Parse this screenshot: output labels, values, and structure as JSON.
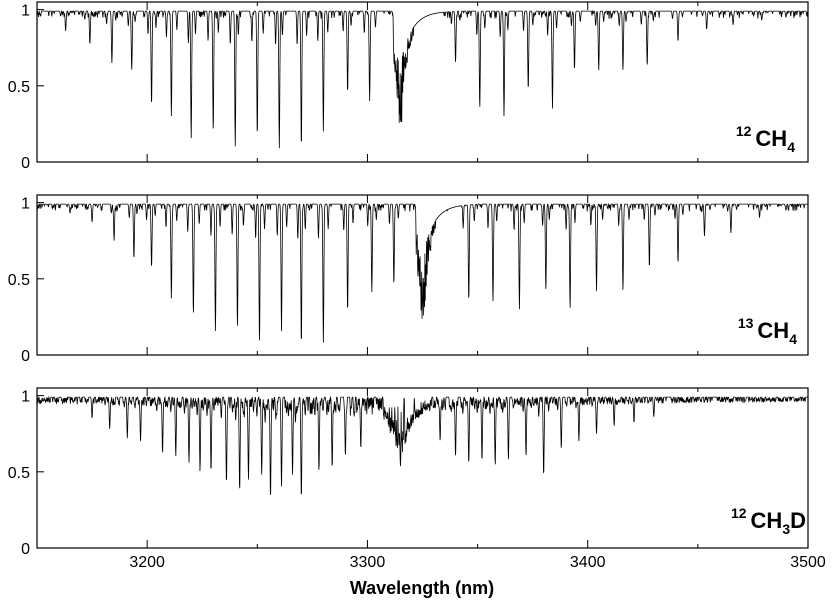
{
  "chart_data": [
    {
      "type": "line",
      "species": {
        "sup": "12",
        "main": "CH",
        "sub": "4",
        "tail": ""
      },
      "xlim": [
        3150,
        3500
      ],
      "ylim": [
        0,
        1.05
      ],
      "yticks": [
        "0",
        "0.5",
        "1"
      ],
      "xticks": [],
      "continuum": 0.99,
      "band_center": 3315,
      "band_depth_min": 0.1,
      "lines_x": [
        3163,
        3174,
        3184,
        3193,
        3202,
        3211,
        3220,
        3230,
        3240,
        3250,
        3260,
        3270,
        3280,
        3291,
        3301,
        3340,
        3351,
        3362,
        3373,
        3384,
        3394,
        3405,
        3416,
        3427,
        3441,
        3454,
        3466,
        3479,
        3490
      ],
      "lines_y": [
        0.86,
        0.77,
        0.65,
        0.6,
        0.37,
        0.3,
        0.15,
        0.2,
        0.1,
        0.17,
        0.09,
        0.09,
        0.2,
        0.45,
        0.4,
        0.65,
        0.35,
        0.3,
        0.47,
        0.35,
        0.6,
        0.6,
        0.6,
        0.63,
        0.79,
        0.87,
        0.9,
        0.93,
        0.95
      ]
    },
    {
      "type": "line",
      "species": {
        "sup": "13",
        "main": "CH",
        "sub": "4",
        "tail": ""
      },
      "xlim": [
        3150,
        3500
      ],
      "ylim": [
        0,
        1.05
      ],
      "yticks": [
        "0",
        "0.5",
        "1"
      ],
      "xticks": [],
      "continuum": 0.99,
      "band_center": 3325,
      "band_depth_min": 0.07,
      "lines_x": [
        3157,
        3165,
        3175,
        3185,
        3194,
        3202,
        3211,
        3221,
        3231,
        3241,
        3251,
        3261,
        3270,
        3280,
        3291,
        3302,
        3312,
        3346,
        3357,
        3369,
        3381,
        3392,
        3404,
        3416,
        3428,
        3441,
        3453,
        3465,
        3478,
        3490
      ],
      "lines_y": [
        0.97,
        0.93,
        0.87,
        0.75,
        0.63,
        0.57,
        0.37,
        0.26,
        0.15,
        0.18,
        0.08,
        0.15,
        0.06,
        0.08,
        0.28,
        0.41,
        0.46,
        0.35,
        0.35,
        0.3,
        0.42,
        0.3,
        0.42,
        0.42,
        0.57,
        0.6,
        0.78,
        0.8,
        0.9,
        0.95
      ]
    },
    {
      "type": "line",
      "species": {
        "sup": "12",
        "main": "CH",
        "sub": "3",
        "tail": "D"
      },
      "xlim": [
        3150,
        3500
      ],
      "ylim": [
        0,
        1.05
      ],
      "yticks": [
        "0",
        "0.5",
        "1"
      ],
      "xticks": [
        "3200",
        "3300",
        "3400",
        "3500"
      ],
      "xlabel": "Wavelength (nm)",
      "continuum": 0.99,
      "band_center": 3315,
      "band_depth_min": 0.52,
      "lines_x": [
        3175,
        3183,
        3191,
        3197,
        3207,
        3213,
        3219,
        3224,
        3229,
        3236,
        3242,
        3246,
        3252,
        3256,
        3261,
        3266,
        3270,
        3278,
        3284,
        3290,
        3297,
        3333,
        3340,
        3346,
        3352,
        3358,
        3364,
        3372,
        3380,
        3388,
        3396,
        3404,
        3412,
        3421,
        3430
      ],
      "lines_y": [
        0.85,
        0.78,
        0.72,
        0.7,
        0.62,
        0.6,
        0.56,
        0.5,
        0.5,
        0.42,
        0.37,
        0.45,
        0.48,
        0.32,
        0.4,
        0.48,
        0.32,
        0.5,
        0.52,
        0.6,
        0.65,
        0.7,
        0.6,
        0.55,
        0.57,
        0.54,
        0.58,
        0.6,
        0.47,
        0.65,
        0.7,
        0.75,
        0.8,
        0.82,
        0.86
      ]
    }
  ]
}
